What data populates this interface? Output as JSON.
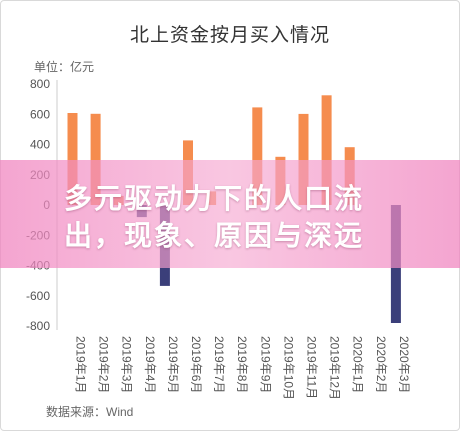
{
  "chart_data": {
    "type": "bar",
    "title": "北上资金按月买入情况",
    "unit_label": "单位：亿元",
    "source_label": "数据来源：Wind",
    "categories": [
      "2019年1月",
      "2019年2月",
      "2019年3月",
      "2019年4月",
      "2019年5月",
      "2019年6月",
      "2019年7月",
      "2019年8月",
      "2019年9月",
      "2019年10月",
      "2019年11月",
      "2019年12月",
      "2020年1月",
      "2020年2月",
      "2020年3月"
    ],
    "values": [
      608,
      603,
      60,
      -80,
      -535,
      427,
      90,
      0,
      645,
      319,
      602,
      725,
      382,
      0,
      -780
    ],
    "yticks": [
      800,
      600,
      400,
      200,
      0,
      -200,
      -400,
      -600,
      -800
    ],
    "ylim": [
      -800,
      800
    ],
    "grid": false,
    "colors": {
      "positive": "#F58C4E",
      "negative": "#3B3F7A"
    }
  },
  "overlay": {
    "headline_lines": [
      "多元驱动力下的人口流",
      "出，现象、原因与深远"
    ]
  }
}
